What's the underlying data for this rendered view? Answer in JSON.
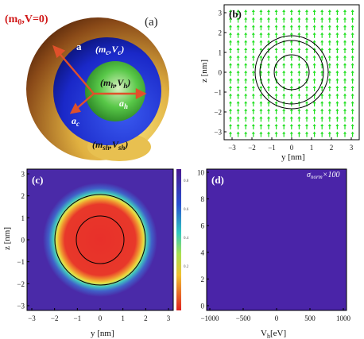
{
  "panel_a": {
    "label": "(a)",
    "outer_region": "(m",
    "outer_sub": "0",
    "outer_rest": ",V=0)",
    "a_label": "a",
    "core_shell_label": "(m",
    "core_shell_sub": "c",
    "core_shell_mid": ",V",
    "core_shell_sub2": "c",
    "core_shell_end": ")",
    "inner_label": "(m",
    "inner_sub": "h",
    "inner_mid": ",V",
    "inner_sub2": "h",
    "inner_end": ")",
    "ah_label": "a",
    "ah_sub": "h",
    "ac_label": "a",
    "ac_sub": "c",
    "shell_label": "(m",
    "shell_sub": "sh",
    "shell_mid": ",V",
    "shell_sub2": "sh",
    "shell_end": ")",
    "colors": {
      "outer_shell": "#b8862a",
      "blue_shell": "#1b2fd0",
      "green_core": "#3fb83a",
      "red_text": "#d01818",
      "arrow": "#e0502a"
    }
  },
  "panel_b": {
    "label": "(b)",
    "ylabel": "z [nm]",
    "xlabel": "y [nm]",
    "ticks": [
      "−3",
      "−2",
      "−1",
      "0",
      "1",
      "2",
      "3"
    ],
    "arrow_color": "#22e022"
  },
  "panel_c": {
    "label": "(c)",
    "ylabel": "z [nm]",
    "xlabel": "y [nm]",
    "ticks": [
      "−3",
      "−2",
      "−1",
      "0",
      "1",
      "2",
      "3"
    ],
    "colorbar_ticks": [
      "0.8",
      "0.6",
      "0.4",
      "0.2"
    ],
    "colors": {
      "background": "#4a2aa8",
      "core": "#e8302a"
    }
  },
  "panel_d": {
    "label": "(d)",
    "annotation_sigma": "σ",
    "annotation_sub": "norm",
    "annotation_rest": "×100",
    "xlabel_main": "V",
    "xlabel_sub": "h",
    "xlabel_rest": "[eV]",
    "xticks": [
      "−1000",
      "−500",
      "0",
      "500",
      "1000"
    ],
    "yticks": [
      "10",
      "8",
      "6",
      "4",
      "2",
      "0"
    ],
    "colors": {
      "background": "#4a24a8"
    }
  }
}
